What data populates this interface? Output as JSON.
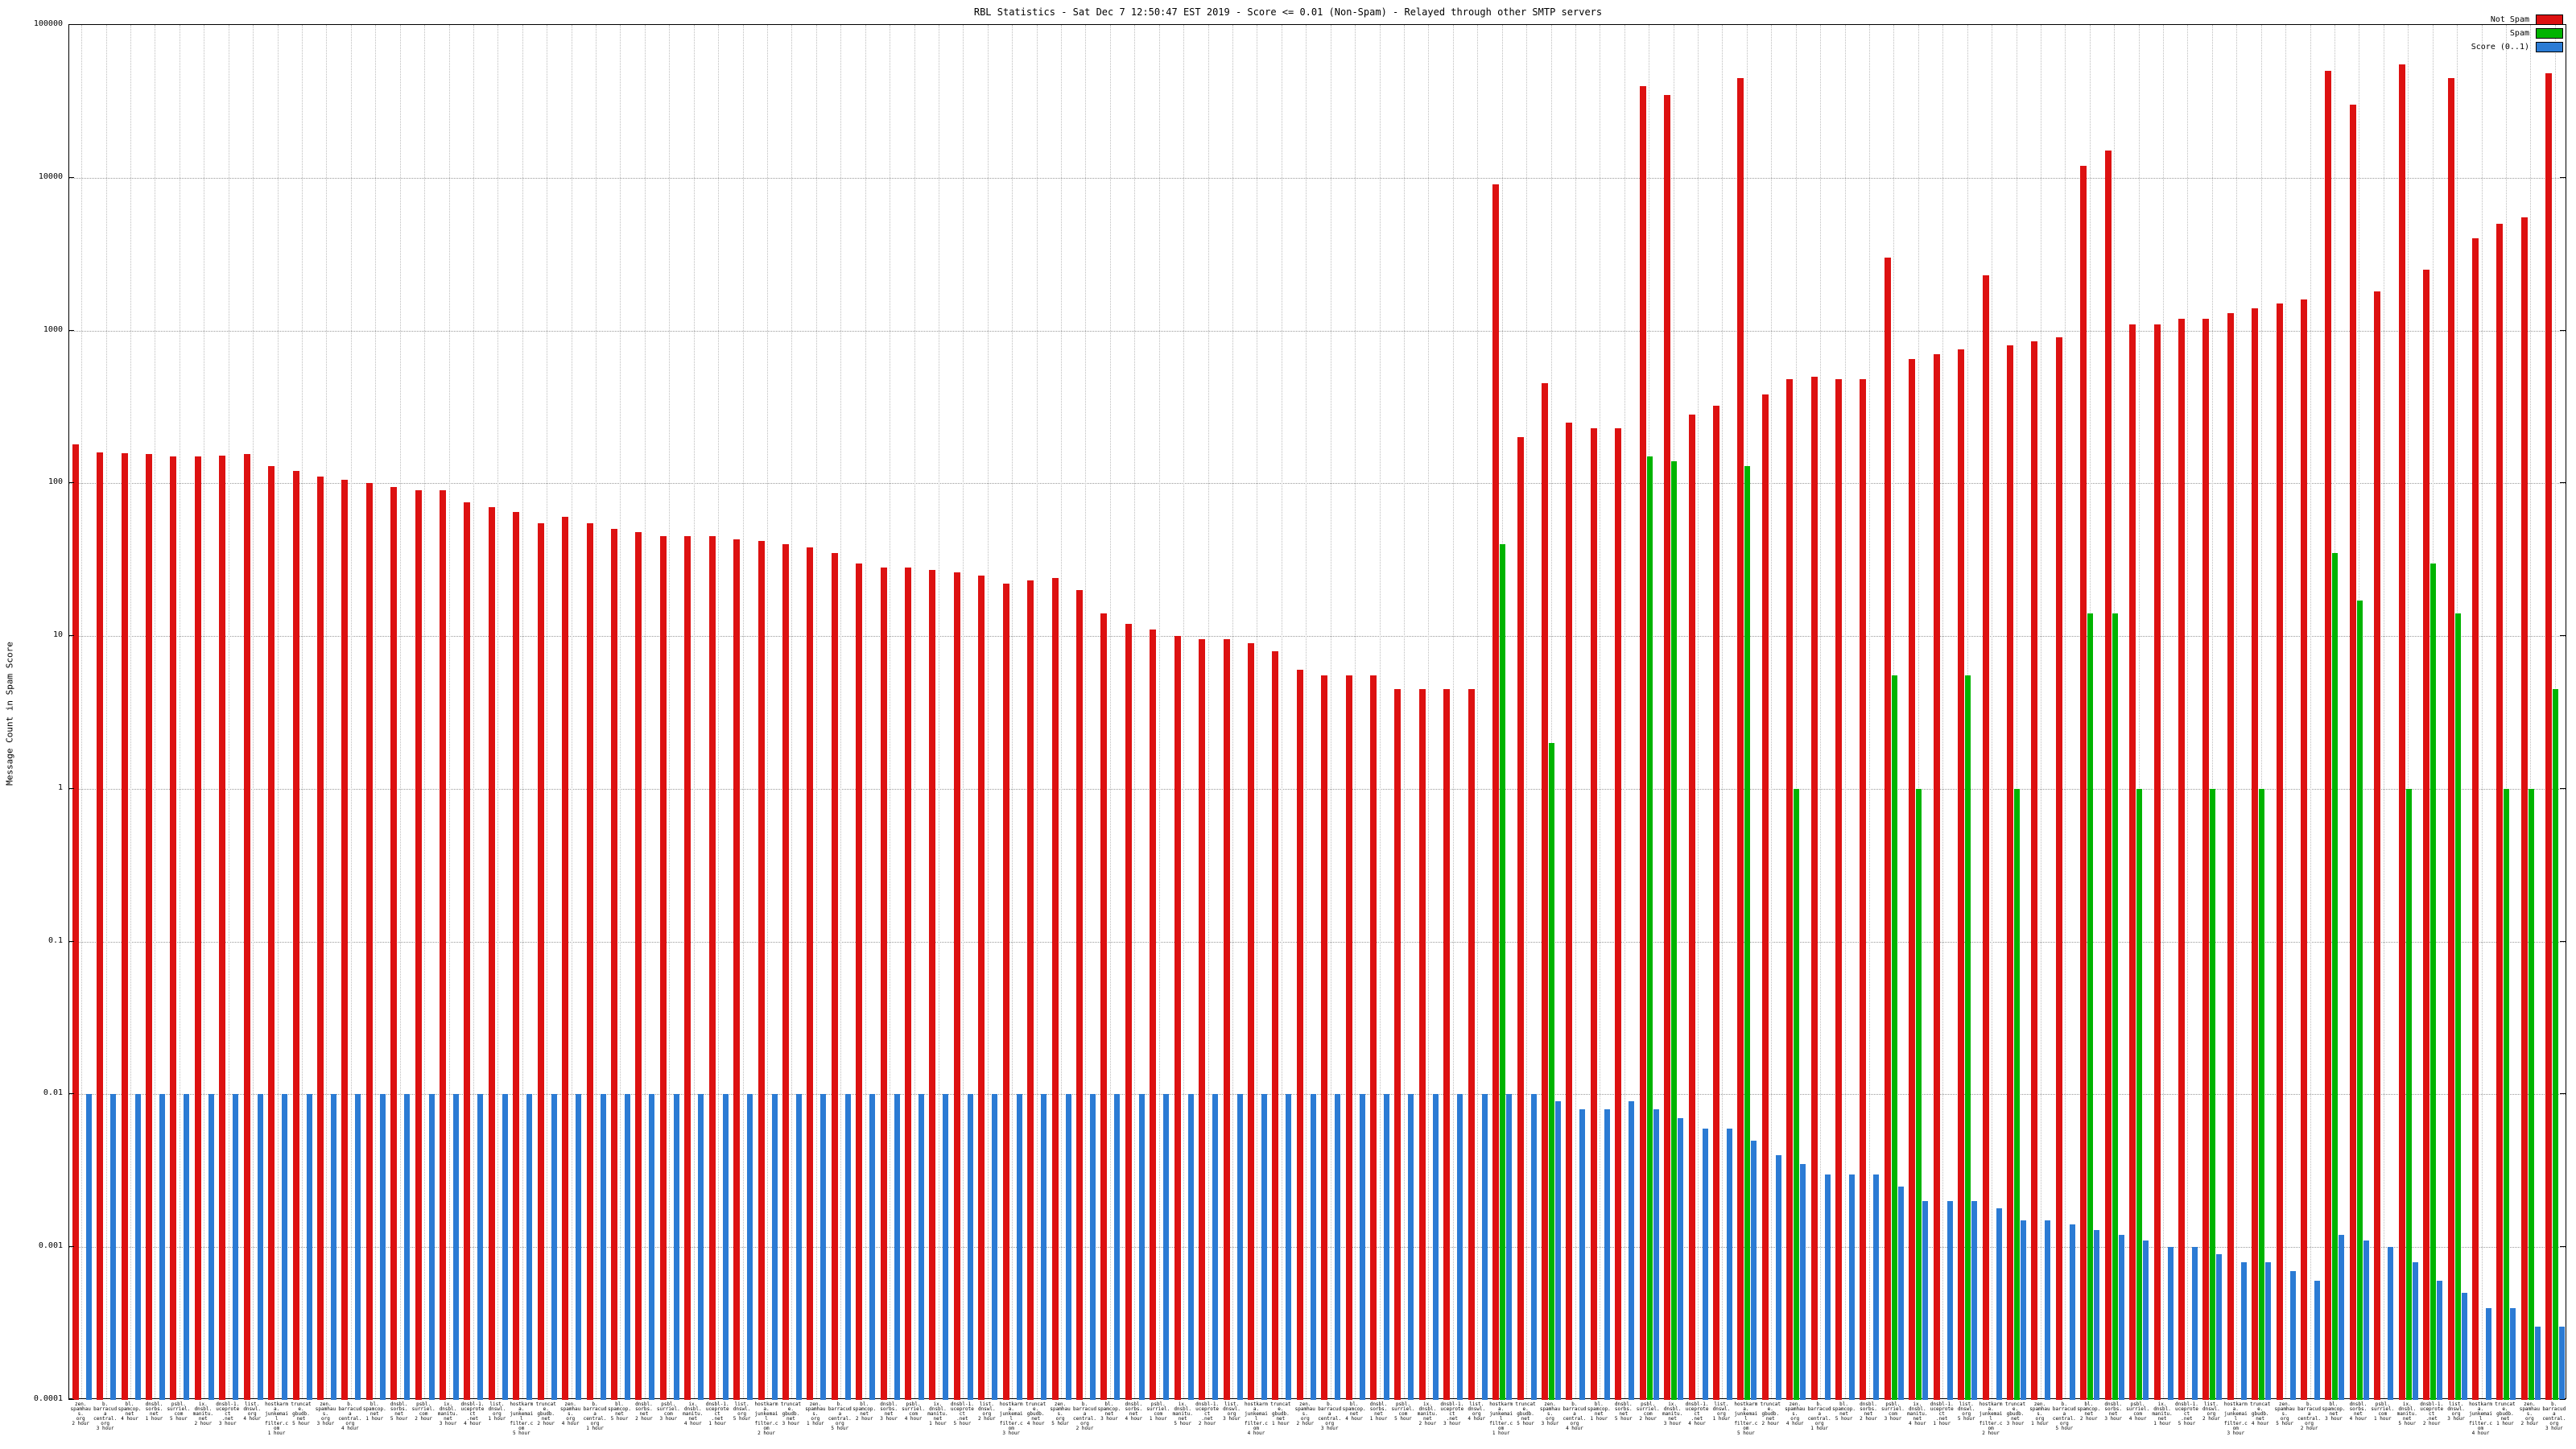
{
  "title": "RBL Statistics - Sat Dec  7 12:50:47 EST 2019 - Score <= 0.01 (Non-Spam) - Relayed through other SMTP servers",
  "ylabel": "Message Count in Spam Score",
  "legend": [
    {
      "label": "Not Spam",
      "color": "#dd1111"
    },
    {
      "label": "Spam",
      "color": "#00b400"
    },
    {
      "label": "Score (0..1)",
      "color": "#2b7bd4"
    }
  ],
  "y_ticks": [
    "100000",
    "10000",
    "1000",
    "100",
    "10",
    "1",
    "0.1",
    "0.01",
    "0.001",
    "0.0001"
  ],
  "chart_data": {
    "type": "bar",
    "y_scale": "log",
    "ylim": [
      0.0001,
      100000
    ],
    "grid": true,
    "legend_position": "top-right",
    "categories": [
      "zen.\nspamhaus.\norg\n2 hour",
      "b.\nbarracuda\ncentral.\norg\n3 hour",
      "bl.\nspamcop.\nnet\n4 hour",
      "dnsbl.\nsorbs.\nnet\n1 hour",
      "psbl.\nsurriel.\ncom\n5 hour",
      "ix.\ndnsbl.\nmanitu.\nnet\n2 hour",
      "dnsbl-1.\nuceprotect\n.net\n3 hour",
      "list.\ndnswl.\norg\n4 hour",
      "hostkarma.\njunkemail\nfilter.com\n1 hour",
      "truncate.\ngbudb.\nnet\n5 hour",
      "zen.\nspamhaus.\norg\n3 hour",
      "b.\nbarracuda\ncentral.\norg\n4 hour",
      "bl.\nspamcop.\nnet\n1 hour",
      "dnsbl.\nsorbs.\nnet\n5 hour",
      "psbl.\nsurriel.\ncom\n2 hour",
      "ix.\ndnsbl.\nmanitu.\nnet\n3 hour",
      "dnsbl-1.\nuceprotect\n.net\n4 hour",
      "list.\ndnswl.\norg\n1 hour",
      "hostkarma.\njunkemail\nfilter.com\n5 hour",
      "truncate.\ngbudb.\nnet\n2 hour",
      "zen.\nspamhaus.\norg\n4 hour",
      "b.\nbarracuda\ncentral.\norg\n1 hour",
      "bl.\nspamcop.\nnet\n5 hour",
      "dnsbl.\nsorbs.\nnet\n2 hour",
      "psbl.\nsurriel.\ncom\n3 hour",
      "ix.\ndnsbl.\nmanitu.\nnet\n4 hour",
      "dnsbl-1.\nuceprotect\n.net\n1 hour",
      "list.\ndnswl.\norg\n5 hour",
      "hostkarma.\njunkemail\nfilter.com\n2 hour",
      "truncate.\ngbudb.\nnet\n3 hour",
      "zen.\nspamhaus.\norg\n1 hour",
      "b.\nbarracuda\ncentral.\norg\n5 hour",
      "bl.\nspamcop.\nnet\n2 hour",
      "dnsbl.\nsorbs.\nnet\n3 hour",
      "psbl.\nsurriel.\ncom\n4 hour",
      "ix.\ndnsbl.\nmanitu.\nnet\n1 hour",
      "dnsbl-1.\nuceprotect\n.net\n5 hour",
      "list.\ndnswl.\norg\n2 hour",
      "hostkarma.\njunkemail\nfilter.com\n3 hour",
      "truncate.\ngbudb.\nnet\n4 hour",
      "zen.\nspamhaus.\norg\n5 hour",
      "b.\nbarracuda\ncentral.\norg\n2 hour",
      "bl.\nspamcop.\nnet\n3 hour",
      "dnsbl.\nsorbs.\nnet\n4 hour",
      "psbl.\nsurriel.\ncom\n1 hour",
      "ix.\ndnsbl.\nmanitu.\nnet\n5 hour",
      "dnsbl-1.\nuceprotect\n.net\n2 hour",
      "list.\ndnswl.\norg\n3 hour",
      "hostkarma.\njunkemail\nfilter.com\n4 hour",
      "truncate.\ngbudb.\nnet\n1 hour",
      "zen.\nspamhaus.\norg\n2 hour",
      "b.\nbarracuda\ncentral.\norg\n3 hour",
      "bl.\nspamcop.\nnet\n4 hour",
      "dnsbl.\nsorbs.\nnet\n1 hour",
      "psbl.\nsurriel.\ncom\n5 hour",
      "ix.\ndnsbl.\nmanitu.\nnet\n2 hour",
      "dnsbl-1.\nuceprotect\n.net\n3 hour",
      "list.\ndnswl.\norg\n4 hour",
      "hostkarma.\njunkemail\nfilter.com\n1 hour",
      "truncate.\ngbudb.\nnet\n5 hour",
      "zen.\nspamhaus.\norg\n3 hour",
      "b.\nbarracuda\ncentral.\norg\n4 hour",
      "bl.\nspamcop.\nnet\n1 hour",
      "dnsbl.\nsorbs.\nnet\n5 hour",
      "psbl.\nsurriel.\ncom\n2 hour",
      "ix.\ndnsbl.\nmanitu.\nnet\n3 hour",
      "dnsbl-1.\nuceprotect\n.net\n4 hour",
      "list.\ndnswl.\norg\n1 hour",
      "hostkarma.\njunkemail\nfilter.com\n5 hour",
      "truncate.\ngbudb.\nnet\n2 hour",
      "zen.\nspamhaus.\norg\n4 hour",
      "b.\nbarracuda\ncentral.\norg\n1 hour",
      "bl.\nspamcop.\nnet\n5 hour",
      "dnsbl.\nsorbs.\nnet\n2 hour",
      "psbl.\nsurriel.\ncom\n3 hour",
      "ix.\ndnsbl.\nmanitu.\nnet\n4 hour",
      "dnsbl-1.\nuceprotect\n.net\n1 hour",
      "list.\ndnswl.\norg\n5 hour",
      "hostkarma.\njunkemail\nfilter.com\n2 hour",
      "truncate.\ngbudb.\nnet\n3 hour",
      "zen.\nspamhaus.\norg\n1 hour",
      "b.\nbarracuda\ncentral.\norg\n5 hour",
      "bl.\nspamcop.\nnet\n2 hour",
      "dnsbl.\nsorbs.\nnet\n3 hour",
      "psbl.\nsurriel.\ncom\n4 hour",
      "ix.\ndnsbl.\nmanitu.\nnet\n1 hour",
      "dnsbl-1.\nuceprotect\n.net\n5 hour",
      "list.\ndnswl.\norg\n2 hour",
      "hostkarma.\njunkemail\nfilter.com\n3 hour",
      "truncate.\ngbudb.\nnet\n4 hour",
      "zen.\nspamhaus.\norg\n5 hour",
      "b.\nbarracuda\ncentral.\norg\n2 hour",
      "bl.\nspamcop.\nnet\n3 hour",
      "dnsbl.\nsorbs.\nnet\n4 hour",
      "psbl.\nsurriel.\ncom\n1 hour",
      "ix.\ndnsbl.\nmanitu.\nnet\n5 hour",
      "dnsbl-1.\nuceprotect\n.net\n2 hour",
      "list.\ndnswl.\norg\n3 hour",
      "hostkarma.\njunkemail\nfilter.com\n4 hour",
      "truncate.\ngbudb.\nnet\n1 hour",
      "zen.\nspamhaus.\norg\n2 hour",
      "b.\nbarracuda\ncentral.\norg\n3 hour"
    ],
    "series": [
      {
        "name": "Not Spam",
        "color": "#dd1111",
        "values": [
          180,
          160,
          158,
          155,
          150,
          150,
          152,
          155,
          130,
          120,
          110,
          105,
          100,
          95,
          90,
          90,
          75,
          70,
          65,
          55,
          60,
          55,
          50,
          48,
          45,
          45,
          45,
          43,
          42,
          40,
          38,
          35,
          30,
          28,
          28,
          27,
          26,
          25,
          22,
          23,
          24,
          20,
          14,
          12,
          11,
          10,
          9.5,
          9.5,
          9,
          8,
          6,
          5.5,
          5.5,
          5.5,
          4.5,
          4.5,
          4.5,
          4.5,
          9000,
          200,
          450,
          250,
          230,
          230,
          40000,
          35000,
          280,
          320,
          45000,
          380,
          480,
          500,
          480,
          480,
          3000,
          650,
          700,
          750,
          2300,
          800,
          850,
          900,
          12000,
          15000,
          1100,
          1100,
          1200,
          1200,
          1300,
          1400,
          1500,
          1600,
          50000,
          30000,
          1800,
          55000,
          2500,
          45000,
          4000,
          5000,
          5500,
          48000
        ]
      },
      {
        "name": "Spam",
        "color": "#00b400",
        "values": [
          0,
          0,
          0,
          0,
          0,
          0,
          0,
          0,
          0,
          0,
          0,
          0,
          0,
          0,
          0,
          0,
          0,
          0,
          0,
          0,
          0,
          0,
          0,
          0,
          0,
          0,
          0,
          0,
          0,
          0,
          0,
          0,
          0,
          0,
          0,
          0,
          0,
          0,
          0,
          0,
          0,
          0,
          0,
          0,
          0,
          0,
          0,
          0,
          0,
          0,
          0,
          0,
          0,
          0,
          0,
          0,
          0,
          0,
          40,
          0,
          2,
          0,
          0,
          0,
          150,
          140,
          0,
          0,
          130,
          0,
          1,
          0,
          0,
          0,
          5.5,
          1,
          0,
          5.5,
          0,
          1,
          0,
          0,
          14,
          14,
          1,
          0,
          0,
          1,
          0,
          1,
          0,
          0,
          35,
          17,
          0,
          1,
          30,
          14,
          0,
          1,
          1,
          4.5
        ]
      },
      {
        "name": "Score (0..1)",
        "color": "#2b7bd4",
        "values": [
          0.01,
          0.01,
          0.01,
          0.01,
          0.01,
          0.01,
          0.01,
          0.01,
          0.01,
          0.01,
          0.01,
          0.01,
          0.01,
          0.01,
          0.01,
          0.01,
          0.01,
          0.01,
          0.01,
          0.01,
          0.01,
          0.01,
          0.01,
          0.01,
          0.01,
          0.01,
          0.01,
          0.01,
          0.01,
          0.01,
          0.01,
          0.01,
          0.01,
          0.01,
          0.01,
          0.01,
          0.01,
          0.01,
          0.01,
          0.01,
          0.01,
          0.01,
          0.01,
          0.01,
          0.01,
          0.01,
          0.01,
          0.01,
          0.01,
          0.01,
          0.01,
          0.01,
          0.01,
          0.01,
          0.01,
          0.01,
          0.01,
          0.01,
          0.01,
          0.01,
          0.009,
          0.008,
          0.008,
          0.009,
          0.008,
          0.007,
          0.006,
          0.006,
          0.005,
          0.004,
          0.0035,
          0.003,
          0.003,
          0.003,
          0.0025,
          0.002,
          0.002,
          0.002,
          0.0018,
          0.0015,
          0.0015,
          0.0014,
          0.0013,
          0.0012,
          0.0011,
          0.001,
          0.001,
          0.0009,
          0.0008,
          0.0008,
          0.0007,
          0.0006,
          0.0012,
          0.0011,
          0.001,
          0.0008,
          0.0006,
          0.0005,
          0.0004,
          0.0004,
          0.0003,
          0.0003
        ]
      }
    ],
    "title": "RBL Statistics - Sat Dec  7 12:50:47 EST 2019 - Score <= 0.01 (Non-Spam) - Relayed through other SMTP servers",
    "xlabel": "",
    "ylabel": "Message Count in Spam Score"
  }
}
